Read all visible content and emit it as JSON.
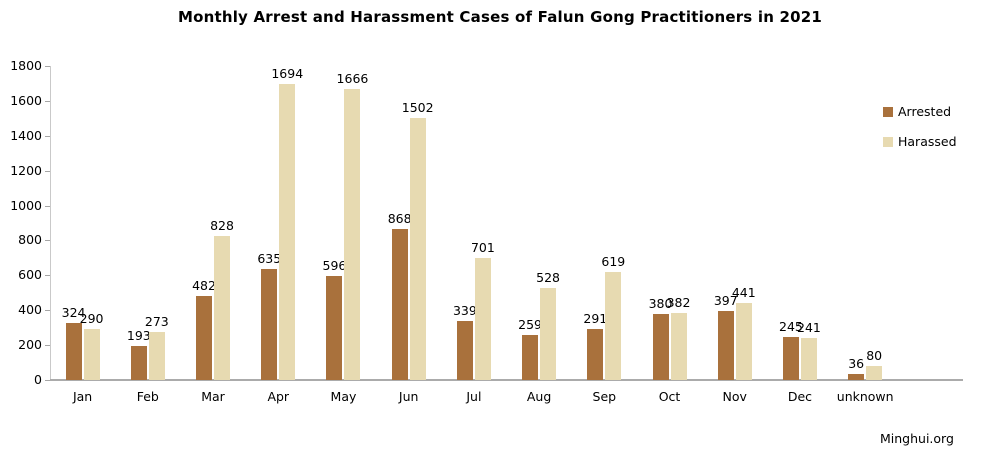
{
  "title": "Monthly Arrest and Harassment Cases of Falun Gong Practitioners in 2021",
  "footer": {
    "source": "Minghui.org"
  },
  "legend": {
    "items": [
      {
        "label": "Arrested",
        "color": "#A9713C"
      },
      {
        "label": "Harassed",
        "color": "#E7DAB1"
      }
    ]
  },
  "chart_data": {
    "type": "bar",
    "title": "Monthly Arrest and Harassment Cases of Falun Gong Practitioners in 2021",
    "categories": [
      "Jan",
      "Feb",
      "Mar",
      "Apr",
      "May",
      "Jun",
      "Jul",
      "Aug",
      "Sep",
      "Oct",
      "Nov",
      "Dec",
      "unknown"
    ],
    "series": [
      {
        "name": "Arrested",
        "color": "#A9713C",
        "values": [
          324,
          193,
          482,
          635,
          596,
          868,
          339,
          259,
          291,
          380,
          397,
          245,
          36
        ]
      },
      {
        "name": "Harassed",
        "color": "#E7DAB1",
        "values": [
          290,
          273,
          828,
          1694,
          1666,
          1502,
          701,
          528,
          619,
          382,
          441,
          241,
          80
        ]
      }
    ],
    "xlabel": "",
    "ylabel": "",
    "ylim": [
      0,
      1800
    ],
    "ytick_step": 200,
    "grid": false,
    "legend_position": "right-top",
    "data_labels": true,
    "source": "Minghui.org"
  }
}
